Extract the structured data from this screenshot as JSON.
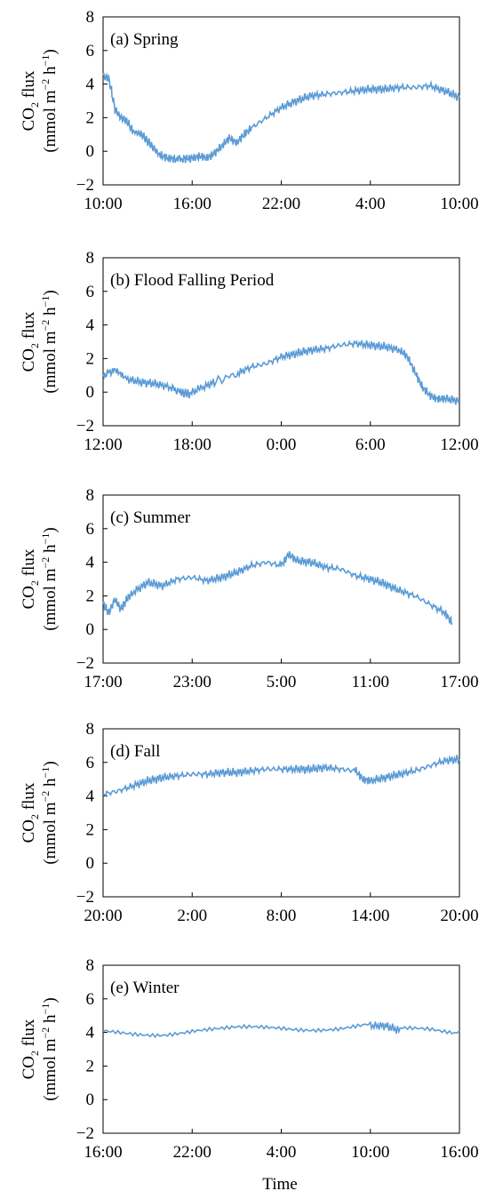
{
  "chart_data": [
    {
      "type": "line",
      "panel_label": "(a) Spring",
      "ylabel": "CO2 flux (mmol m−2 h−1)",
      "ylim": [
        -2,
        8
      ],
      "yticks": [
        "−2",
        "0",
        "2",
        "4",
        "6",
        "8"
      ],
      "xticks": [
        "10:00",
        "16:00",
        "22:00",
        "4:00",
        "10:00"
      ],
      "x_hours": [
        0,
        0.4,
        0.8,
        1.2,
        1.6,
        2,
        2.6,
        3.2,
        3.8,
        4.3,
        4.8,
        5.5,
        6,
        6.5,
        7,
        7.5,
        8,
        8.5,
        9,
        9.5,
        10,
        11,
        12,
        13,
        14,
        15,
        16,
        17,
        18,
        19,
        20,
        21,
        22,
        23,
        24
      ],
      "y": [
        4.5,
        4.3,
        2.5,
        2.0,
        1.8,
        1.2,
        1.0,
        0.4,
        -0.2,
        -0.4,
        -0.45,
        -0.45,
        -0.4,
        -0.3,
        -0.4,
        -0.1,
        0.3,
        0.8,
        0.5,
        1.0,
        1.4,
        2.0,
        2.6,
        3.0,
        3.3,
        3.4,
        3.5,
        3.6,
        3.7,
        3.7,
        3.8,
        3.8,
        3.9,
        3.6,
        3.2
      ],
      "series_color": "#5b9bd5"
    },
    {
      "type": "line",
      "panel_label": "(b) Flood Falling Period",
      "ylabel": "CO2 flux (mmol m−2 h−1)",
      "ylim": [
        -2,
        8
      ],
      "yticks": [
        "−2",
        "0",
        "2",
        "4",
        "6",
        "8"
      ],
      "xticks": [
        "12:00",
        "18:00",
        "0:00",
        "6:00",
        "12:00"
      ],
      "x_hours": [
        0,
        0.7,
        1.5,
        2.5,
        3.5,
        4.5,
        5.2,
        5.8,
        6.5,
        7.5,
        9,
        10,
        11,
        12,
        13,
        14,
        15,
        16,
        17,
        18,
        19,
        20,
        20.5,
        21,
        21.5,
        22,
        22.5,
        23,
        24
      ],
      "y": [
        1.0,
        1.3,
        0.8,
        0.6,
        0.5,
        0.3,
        0.0,
        -0.1,
        0.2,
        0.6,
        1.1,
        1.5,
        1.7,
        2.1,
        2.3,
        2.5,
        2.6,
        2.8,
        2.9,
        2.8,
        2.7,
        2.5,
        2.1,
        1.2,
        0.3,
        -0.2,
        -0.4,
        -0.4,
        -0.5
      ],
      "series_color": "#5b9bd5"
    },
    {
      "type": "line",
      "panel_label": "(c) Summer",
      "ylabel": "CO2 flux (mmol m−2 h−1)",
      "ylim": [
        -2,
        8
      ],
      "yticks": [
        "−2",
        "0",
        "2",
        "4",
        "6",
        "8"
      ],
      "xticks": [
        "17:00",
        "23:00",
        "5:00",
        "11:00",
        "17:00"
      ],
      "x_hours": [
        0,
        0.4,
        0.8,
        1.2,
        1.6,
        2,
        3,
        4,
        5,
        6,
        7,
        8,
        9,
        10,
        11,
        12,
        12.5,
        13,
        14,
        15,
        16,
        17,
        18,
        19,
        20,
        21,
        22,
        23,
        23.5
      ],
      "y": [
        1.5,
        1.0,
        1.8,
        1.2,
        1.8,
        2.2,
        2.8,
        2.6,
        3.0,
        3.1,
        2.9,
        3.1,
        3.4,
        3.8,
        4.0,
        3.8,
        4.5,
        4.1,
        4.0,
        3.7,
        3.6,
        3.2,
        3.0,
        2.7,
        2.3,
        2.0,
        1.5,
        1.0,
        0.4
      ],
      "series_color": "#5b9bd5"
    },
    {
      "type": "line",
      "panel_label": "(d) Fall",
      "ylabel": "CO2 flux (mmol m−2 h−1)",
      "ylim": [
        -2,
        8
      ],
      "yticks": [
        "−2",
        "0",
        "2",
        "4",
        "6",
        "8"
      ],
      "xticks": [
        "20:00",
        "2:00",
        "8:00",
        "14:00",
        "20:00"
      ],
      "x_hours": [
        0,
        1,
        2,
        3,
        4,
        5,
        6,
        7,
        8,
        9,
        10,
        11,
        12,
        13,
        14,
        15,
        16,
        17,
        17.5,
        18,
        19,
        20,
        21,
        22,
        23,
        24
      ],
      "y": [
        4.1,
        4.3,
        4.6,
        4.9,
        5.1,
        5.2,
        5.3,
        5.3,
        5.4,
        5.4,
        5.5,
        5.6,
        5.6,
        5.6,
        5.6,
        5.7,
        5.6,
        5.5,
        5.0,
        4.9,
        5.1,
        5.3,
        5.5,
        5.8,
        6.1,
        6.2
      ],
      "series_color": "#5b9bd5"
    },
    {
      "type": "line",
      "panel_label": "(e) Winter",
      "ylabel": "CO2 flux (mmol m−2 h−1)",
      "ylim": [
        -2,
        8
      ],
      "yticks": [
        "−2",
        "0",
        "2",
        "4",
        "6",
        "8"
      ],
      "xticks": [
        "16:00",
        "22:00",
        "4:00",
        "10:00",
        "16:00"
      ],
      "x_hours": [
        0,
        2,
        4,
        6,
        8,
        10,
        12,
        14,
        16,
        18,
        19,
        20,
        22,
        24
      ],
      "y": [
        4.0,
        4.0,
        4.0,
        4.1,
        4.1,
        4.2,
        4.3,
        4.3,
        4.3,
        4.4,
        4.4,
        4.1,
        4.2,
        4.1
      ],
      "series_color": "#5b9bd5"
    }
  ],
  "xlabel": "Time",
  "ylabel_main": "CO",
  "ylabel_sub": "2",
  "ylabel_tail": " flux",
  "ylabel_units": "(mmol m",
  "ylabel_units_sup1": "−2",
  "ylabel_units_mid": " h",
  "ylabel_units_sup2": "−1",
  "ylabel_units_end": ")"
}
